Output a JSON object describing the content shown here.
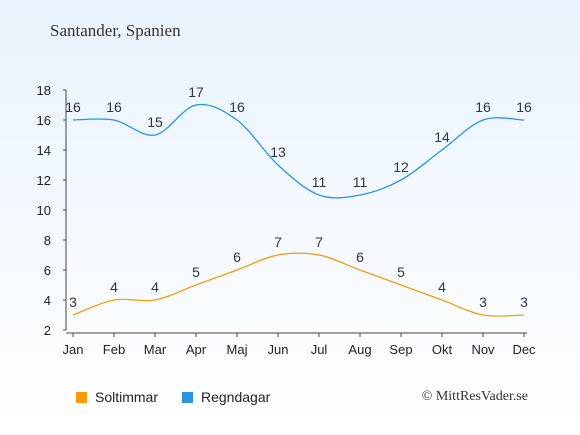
{
  "chart_data": {
    "type": "line",
    "title": "Santander, Spanien",
    "categories": [
      "Jan",
      "Feb",
      "Mar",
      "Apr",
      "Maj",
      "Jun",
      "Jul",
      "Aug",
      "Sep",
      "Okt",
      "Nov",
      "Dec"
    ],
    "series": [
      {
        "name": "Soltimmar",
        "values": [
          3,
          4,
          4,
          5,
          6,
          7,
          7,
          6,
          5,
          4,
          3,
          3
        ],
        "color": "#f79b0e"
      },
      {
        "name": "Regndagar",
        "values": [
          16,
          16,
          15,
          17,
          16,
          13,
          11,
          11,
          12,
          14,
          16,
          16
        ],
        "color": "#2b92e4"
      }
    ],
    "ylim": [
      2,
      18
    ],
    "yticks": [
      2,
      4,
      6,
      8,
      10,
      12,
      14,
      16,
      18
    ],
    "xlabel": "",
    "ylabel": "",
    "grid": false,
    "legend_position": "bottom-left"
  },
  "credit": "© MittResVader.se"
}
